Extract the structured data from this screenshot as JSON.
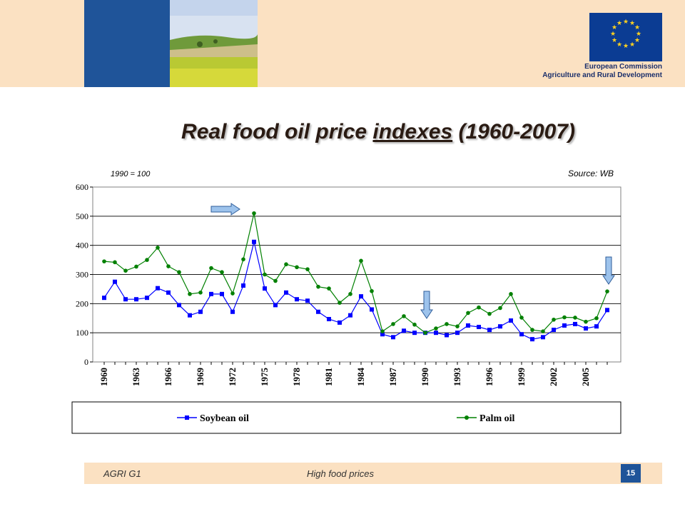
{
  "header": {
    "org_line1": "European Commission",
    "org_line2": "Agriculture and Rural Development"
  },
  "title": {
    "part1": "Real food oil price ",
    "part2": "indexes",
    "part3": " (1960-2007)"
  },
  "footer": {
    "left": "AGRI G1",
    "middle": "High food prices",
    "page": "15"
  },
  "chart_data": {
    "type": "line",
    "x": [
      1960,
      1961,
      1962,
      1963,
      1964,
      1965,
      1966,
      1967,
      1968,
      1969,
      1970,
      1971,
      1972,
      1973,
      1974,
      1975,
      1976,
      1977,
      1978,
      1979,
      1980,
      1981,
      1982,
      1983,
      1984,
      1985,
      1986,
      1987,
      1988,
      1989,
      1990,
      1991,
      1992,
      1993,
      1994,
      1995,
      1996,
      1997,
      1998,
      1999,
      2000,
      2001,
      2002,
      2003,
      2004,
      2005,
      2006,
      2007
    ],
    "x_tick_labels": [
      "1960",
      "1963",
      "1966",
      "1969",
      "1972",
      "1975",
      "1978",
      "1981",
      "1984",
      "1987",
      "1990",
      "1993",
      "1996",
      "1999",
      "2002",
      "2005"
    ],
    "y_ticks": [
      "0",
      "100",
      "200",
      "300",
      "400",
      "500",
      "600"
    ],
    "ylim": [
      0,
      600
    ],
    "annotation_left": "1990 = 100",
    "annotation_right": "Source: WB",
    "grid": "horizontal",
    "legend_placement": "bottom",
    "series": [
      {
        "name": "Soybean oil",
        "color": "#0000ff",
        "marker": "square",
        "values": [
          220,
          275,
          215,
          215,
          220,
          253,
          238,
          195,
          160,
          172,
          233,
          233,
          172,
          262,
          412,
          252,
          195,
          238,
          215,
          210,
          172,
          147,
          135,
          160,
          225,
          180,
          95,
          85,
          107,
          100,
          100,
          100,
          92,
          100,
          125,
          120,
          110,
          122,
          142,
          95,
          78,
          85,
          110,
          125,
          130,
          115,
          122,
          178
        ]
      },
      {
        "name": "Palm oil",
        "color": "#008000",
        "marker": "circle",
        "values": [
          345,
          342,
          313,
          327,
          350,
          392,
          328,
          308,
          233,
          238,
          322,
          308,
          235,
          352,
          510,
          300,
          278,
          335,
          325,
          318,
          258,
          252,
          203,
          233,
          347,
          243,
          105,
          130,
          157,
          128,
          100,
          115,
          130,
          122,
          168,
          187,
          165,
          185,
          233,
          152,
          110,
          105,
          145,
          153,
          152,
          138,
          150,
          242
        ]
      }
    ]
  }
}
